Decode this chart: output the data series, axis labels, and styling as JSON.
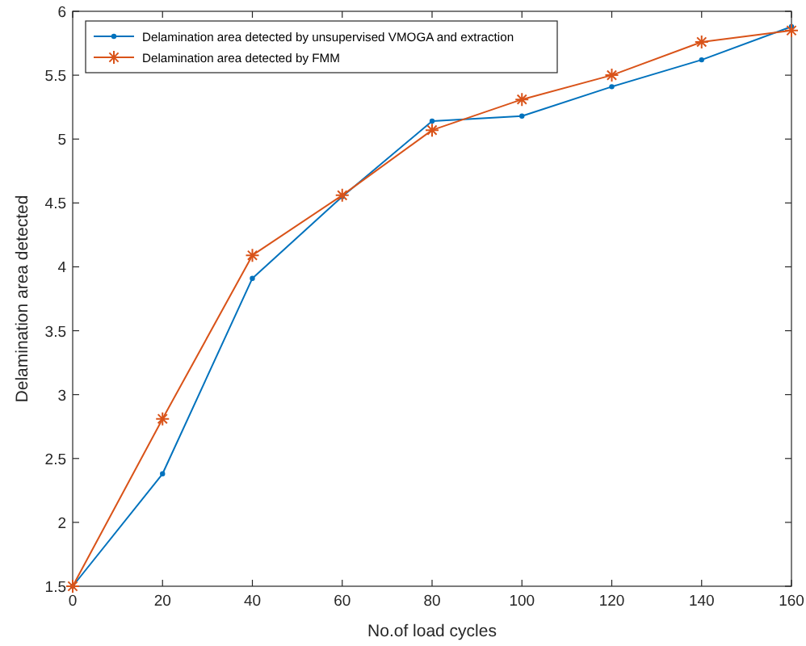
{
  "chart_data": {
    "type": "line",
    "xlabel": "No.of load cycles",
    "ylabel": "Delamination area detected",
    "x": [
      0,
      20,
      40,
      60,
      80,
      100,
      120,
      140,
      160
    ],
    "xlim": [
      0,
      160
    ],
    "xticks": [
      0,
      20,
      40,
      60,
      80,
      100,
      120,
      140,
      160
    ],
    "ylim": [
      1.5,
      6
    ],
    "yticks": [
      1.5,
      2,
      2.5,
      3,
      3.5,
      4,
      4.5,
      5,
      5.5,
      6
    ],
    "legend": "top left",
    "grid": false,
    "series": [
      {
        "name": "Delamination area detected by unsupervised VMOGA and extraction",
        "color": "#0072bd",
        "marker": "circle",
        "values": [
          1.5,
          2.38,
          3.91,
          4.55,
          5.14,
          5.18,
          5.41,
          5.62,
          5.88
        ]
      },
      {
        "name": "Delamination area detected by FMM",
        "color": "#d95319",
        "marker": "cross",
        "values": [
          1.5,
          2.81,
          4.09,
          4.56,
          5.07,
          5.31,
          5.5,
          5.76,
          5.85
        ]
      }
    ]
  }
}
